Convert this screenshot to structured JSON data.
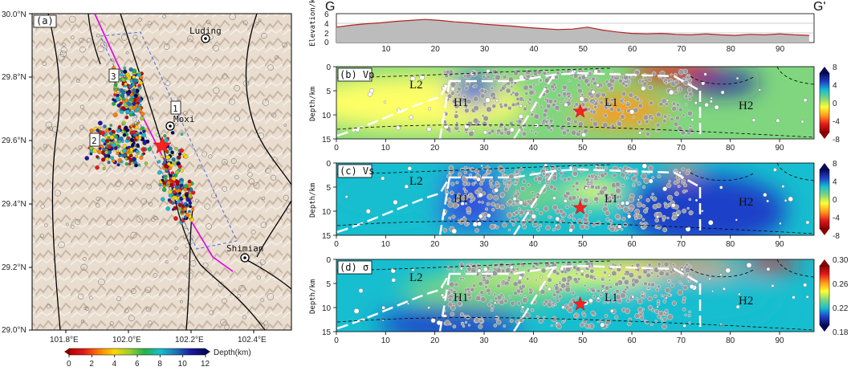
{
  "map": {
    "panel_label": "(a)",
    "lat_ticks": [
      "30.0°N",
      "29.8°N",
      "29.6°N",
      "29.4°N",
      "29.2°N",
      "29.0°N"
    ],
    "lon_ticks": [
      "101.8°E",
      "102.0°E",
      "102.2°E",
      "102.4°E"
    ],
    "towns": [
      {
        "name": "Luding"
      },
      {
        "name": "Moxi"
      },
      {
        "name": "Shimian"
      }
    ],
    "cluster_labels": [
      "1",
      "2",
      "3"
    ],
    "depth_colorbar": {
      "label": "Depth(km)",
      "ticks": [
        "0",
        "2",
        "4",
        "6",
        "8",
        "10",
        "12"
      ],
      "colors": [
        "#b30000",
        "#e31a1c",
        "#ff7f00",
        "#ffd700",
        "#9acd32",
        "#22b14c",
        "#17becf",
        "#1f77b4",
        "#1a1aa6",
        "#08085a"
      ]
    },
    "colors": {
      "fault": "#000000",
      "profile_line": "#e000e0",
      "box": "#4f6fd8",
      "epicenter": "#ff2020"
    }
  },
  "elevation": {
    "label_start": "G",
    "label_end": "G'",
    "ylabel": "Elevation/km",
    "yticks": [
      "6",
      "4",
      "2",
      "0"
    ],
    "xticks": [
      "10",
      "20",
      "30",
      "40",
      "50",
      "60",
      "70",
      "80",
      "90"
    ],
    "profile_km": [
      0,
      3,
      6,
      9,
      12,
      15,
      18,
      21,
      24,
      27,
      30,
      33,
      36,
      39,
      42,
      45,
      48,
      51,
      54,
      57,
      60,
      63,
      66,
      69,
      72,
      75,
      78,
      81,
      84,
      87,
      90,
      93,
      96
    ],
    "profile_elev": [
      3.2,
      3.6,
      3.9,
      4.1,
      4.4,
      4.6,
      4.8,
      4.6,
      4.3,
      4.1,
      3.8,
      3.6,
      3.4,
      3.1,
      2.9,
      2.7,
      2.8,
      3.2,
      2.6,
      2.2,
      1.9,
      1.8,
      1.9,
      1.7,
      1.6,
      1.8,
      1.6,
      1.5,
      1.7,
      1.6,
      1.8,
      1.6,
      1.5
    ],
    "fill": "#bcbcbc",
    "line": "#b22222"
  },
  "sections": [
    {
      "label": "(b) Vp",
      "colorbar_ticks": [
        "8",
        "4",
        "0",
        "-4",
        "-8"
      ],
      "colorbar_colors": [
        "#08085a",
        "#1f3fc8",
        "#17becf",
        "#7fd67f",
        "#ffff33",
        "#ff9a1a",
        "#e31a1c",
        "#8b0000"
      ],
      "regions": [
        {
          "text": "L2"
        },
        {
          "text": "H1"
        },
        {
          "text": "L1"
        },
        {
          "text": "H2"
        }
      ]
    },
    {
      "label": "(c) Vs",
      "colorbar_ticks": [
        "8",
        "4",
        "0",
        "-4",
        "-8"
      ],
      "colorbar_colors": [
        "#08085a",
        "#1f3fc8",
        "#17becf",
        "#7fd67f",
        "#ffff33",
        "#ff9a1a",
        "#e31a1c",
        "#8b0000"
      ],
      "regions": [
        {
          "text": "L2"
        },
        {
          "text": "H1"
        },
        {
          "text": "L1"
        },
        {
          "text": "H2"
        }
      ]
    },
    {
      "label": "(d) σ",
      "colorbar_ticks": [
        "0.30",
        "0.26",
        "0.22",
        "0.18"
      ],
      "colorbar_colors": [
        "#8b0000",
        "#e31a1c",
        "#ff9a1a",
        "#ffff33",
        "#7fd67f",
        "#17becf",
        "#1f3fc8",
        "#08085a"
      ],
      "regions": [
        {
          "text": "L2"
        },
        {
          "text": "H1"
        },
        {
          "text": "L1"
        },
        {
          "text": "H2"
        }
      ]
    }
  ],
  "section_axes": {
    "ylabel": "Depth/km",
    "yticks": [
      "0",
      "5",
      "10",
      "15"
    ],
    "xticks": [
      "0",
      "10",
      "20",
      "30",
      "40",
      "50",
      "60",
      "70",
      "80",
      "90"
    ]
  }
}
